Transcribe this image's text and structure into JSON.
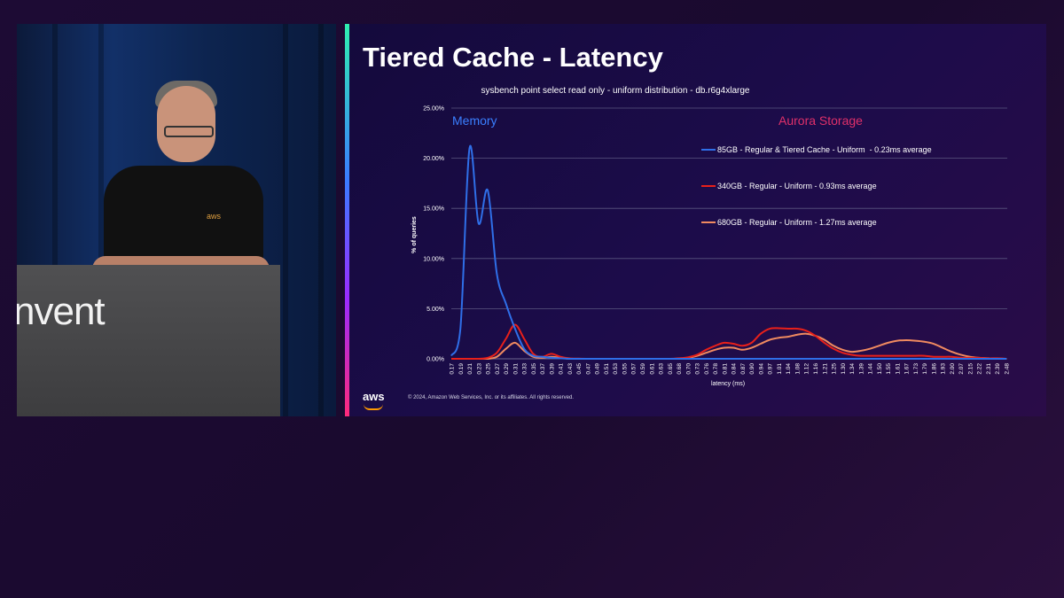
{
  "podium": {
    "text": "nvent"
  },
  "speaker": {
    "shirt_logo": "aws"
  },
  "slide": {
    "title": "Tiered Cache - Latency",
    "logo": "aws",
    "copyright": "© 2024, Amazon Web Services, Inc. or its affiliates. All rights reserved."
  },
  "chart_data": {
    "type": "line",
    "title": "sysbench point select read only - uniform distribution - db.r6g4xlarge",
    "xlabel": "latency (ms)",
    "ylabel": "% of queries",
    "ylim": [
      0,
      25
    ],
    "yticks": [
      "0.00%",
      "5.00%",
      "10.00%",
      "15.00%",
      "20.00%",
      "25.00%"
    ],
    "grid": true,
    "legend_position": "top-right",
    "annotations": [
      {
        "text": "Memory",
        "color": "#3a7fff"
      },
      {
        "text": "Aurora Storage",
        "color": "#e0306a"
      }
    ],
    "x": [
      "0.17",
      "0.19",
      "0.21",
      "0.23",
      "0.25",
      "0.27",
      "0.29",
      "0.31",
      "0.33",
      "0.35",
      "0.37",
      "0.39",
      "0.41",
      "0.43",
      "0.45",
      "0.47",
      "0.49",
      "0.51",
      "0.53",
      "0.55",
      "0.57",
      "0.59",
      "0.61",
      "0.63",
      "0.65",
      "0.68",
      "0.70",
      "0.73",
      "0.76",
      "0.78",
      "0.81",
      "0.84",
      "0.87",
      "0.90",
      "0.94",
      "0.97",
      "1.01",
      "1.04",
      "1.08",
      "1.12",
      "1.16",
      "1.21",
      "1.25",
      "1.30",
      "1.34",
      "1.39",
      "1.44",
      "1.50",
      "1.55",
      "1.61",
      "1.67",
      "1.73",
      "1.79",
      "1.86",
      "1.93",
      "2.00",
      "2.07",
      "2.15",
      "2.22",
      "2.31",
      "2.39",
      "2.48"
    ],
    "series": [
      {
        "name": "85GB - Regular & Tiered Cache - Uniform  - 0.23ms average",
        "color": "#2f6fe8",
        "values": [
          0.3,
          3.0,
          21.0,
          13.5,
          16.8,
          8.5,
          5.5,
          3.0,
          1.0,
          0.3,
          0.2,
          0.1,
          0.05,
          0,
          0,
          0,
          0,
          0,
          0,
          0,
          0,
          0,
          0,
          0,
          0,
          0,
          0,
          0,
          0,
          0,
          0,
          0,
          0,
          0,
          0,
          0,
          0,
          0,
          0,
          0,
          0,
          0,
          0,
          0,
          0,
          0,
          0,
          0,
          0,
          0,
          0,
          0,
          0,
          0,
          0,
          0,
          0,
          0,
          0,
          0,
          0,
          0
        ]
      },
      {
        "name": "340GB - Regular - Uniform - 0.93ms average",
        "color": "#e8201a",
        "values": [
          0,
          0,
          0,
          0,
          0.1,
          0.6,
          2.0,
          3.4,
          2.0,
          0.5,
          0.2,
          0.5,
          0.2,
          0.05,
          0.02,
          0,
          0,
          0,
          0,
          0,
          0,
          0,
          0,
          0,
          0,
          0.05,
          0.15,
          0.4,
          0.9,
          1.3,
          1.6,
          1.5,
          1.3,
          1.6,
          2.5,
          3.0,
          3.05,
          3.0,
          3.0,
          2.8,
          2.3,
          1.6,
          1.0,
          0.6,
          0.4,
          0.3,
          0.3,
          0.3,
          0.3,
          0.3,
          0.3,
          0.3,
          0.3,
          0.2,
          0.2,
          0.2,
          0.1,
          0.1,
          0.1,
          0.05,
          0.05,
          0
        ]
      },
      {
        "name": "680GB - Regular - Uniform - 1.27ms average",
        "color": "#f08a60",
        "values": [
          0,
          0,
          0,
          0,
          0,
          0.2,
          1.0,
          1.6,
          0.8,
          0.2,
          0.1,
          0.2,
          0.1,
          0,
          0,
          0,
          0,
          0,
          0,
          0,
          0,
          0,
          0,
          0,
          0,
          0.02,
          0.1,
          0.3,
          0.6,
          0.9,
          1.1,
          1.1,
          0.9,
          1.1,
          1.5,
          1.9,
          2.1,
          2.2,
          2.4,
          2.5,
          2.3,
          1.9,
          1.3,
          0.9,
          0.7,
          0.8,
          1.0,
          1.3,
          1.6,
          1.8,
          1.85,
          1.8,
          1.7,
          1.5,
          1.1,
          0.7,
          0.4,
          0.2,
          0.1,
          0.05,
          0.02,
          0
        ]
      }
    ]
  }
}
